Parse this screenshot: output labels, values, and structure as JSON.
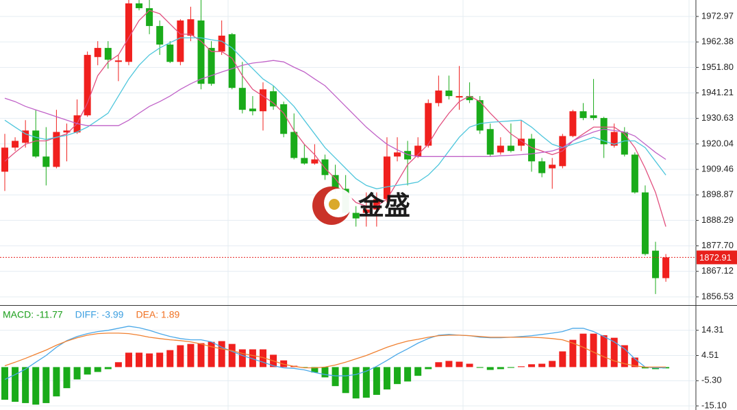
{
  "chart_data": [
    {
      "type": "candlestick",
      "up_color": "#f0201e",
      "down_color": "#1aab1a",
      "open": [
        1908.5,
        1918.5,
        1920.5,
        1925.6,
        1914.8,
        1910.5,
        1924.8,
        1924.8,
        1931.9,
        1956.1,
        1959.9,
        1954.1,
        1954.1,
        1978.4,
        1976.4,
        1969.0,
        1961.3,
        1954.1,
        1965.0,
        1971.3,
        1959.9,
        1958.4,
        1965.6,
        1943.3,
        1934.7,
        1933.6,
        1941.9,
        1936.5,
        1925.0,
        1914.2,
        1911.9,
        1913.6,
        1907.1,
        1901.4,
        1891.4,
        1891.4,
        1892.8,
        1897.1,
        1914.8,
        1917.1,
        1914.8,
        1919.3,
        1937.0,
        1942.2,
        1939.3,
        1939.9,
        1938.2,
        1926.2,
        1916.5,
        1919.3,
        1919.3,
        1922.2,
        1912.8,
        1909.9,
        1910.8,
        1923.3,
        1933.6,
        1931.9,
        1930.8,
        1919.3,
        1925.0,
        1915.6,
        1899.9,
        1875.7,
        1864.3
      ],
      "high": [
        1924.2,
        1922.8,
        1929.9,
        1934.2,
        1927.0,
        1934.2,
        1928.5,
        1938.5,
        1958.4,
        1962.7,
        1962.7,
        1957.0,
        1979.8,
        1979.8,
        1979.8,
        1971.3,
        1962.7,
        1971.8,
        1977.0,
        1979.8,
        1962.7,
        1971.3,
        1966.1,
        1954.1,
        1939.9,
        1945.6,
        1944.2,
        1937.6,
        1932.7,
        1919.9,
        1919.9,
        1915.6,
        1911.4,
        1907.1,
        1894.2,
        1899.9,
        1899.9,
        1922.8,
        1922.8,
        1921.3,
        1922.8,
        1938.5,
        1948.4,
        1948.4,
        1952.4,
        1945.6,
        1939.9,
        1928.5,
        1922.8,
        1928.5,
        1929.9,
        1924.2,
        1914.2,
        1914.2,
        1924.2,
        1934.2,
        1937.0,
        1947.0,
        1931.3,
        1928.5,
        1927.0,
        1916.5,
        1902.8,
        1879.4,
        1874.3
      ],
      "low": [
        1900.5,
        1917.1,
        1918.5,
        1914.2,
        1902.8,
        1909.9,
        1912.8,
        1924.2,
        1931.3,
        1952.7,
        1951.3,
        1946.1,
        1952.7,
        1975.5,
        1965.6,
        1957.0,
        1953.6,
        1952.7,
        1962.7,
        1942.7,
        1944.2,
        1957.0,
        1942.7,
        1932.7,
        1931.9,
        1925.6,
        1934.2,
        1922.8,
        1913.6,
        1911.4,
        1911.4,
        1905.1,
        1899.9,
        1889.9,
        1885.7,
        1885.7,
        1885.7,
        1895.7,
        1912.8,
        1902.8,
        1914.2,
        1918.5,
        1935.6,
        1938.5,
        1934.2,
        1937.0,
        1924.2,
        1914.8,
        1915.6,
        1916.5,
        1917.1,
        1908.5,
        1906.2,
        1901.4,
        1909.9,
        1922.8,
        1929.9,
        1929.9,
        1914.2,
        1918.5,
        1914.8,
        1899.4,
        1873.7,
        1857.7,
        1862.8
      ],
      "close": [
        1918.5,
        1921.3,
        1925.6,
        1914.8,
        1910.5,
        1925.0,
        1925.6,
        1931.9,
        1957.0,
        1959.9,
        1955.0,
        1954.7,
        1978.4,
        1976.4,
        1969.0,
        1961.3,
        1954.1,
        1971.3,
        1971.8,
        1945.0,
        1945.0,
        1965.0,
        1943.3,
        1934.2,
        1933.6,
        1942.7,
        1935.6,
        1924.2,
        1914.2,
        1911.9,
        1913.6,
        1907.1,
        1901.4,
        1891.4,
        1889.1,
        1892.8,
        1897.1,
        1914.8,
        1916.5,
        1913.6,
        1919.3,
        1937.0,
        1942.2,
        1939.9,
        1939.9,
        1938.2,
        1925.6,
        1915.6,
        1919.3,
        1917.1,
        1922.2,
        1912.8,
        1907.9,
        1911.4,
        1923.3,
        1933.6,
        1930.8,
        1930.8,
        1919.9,
        1925.0,
        1915.6,
        1899.9,
        1874.3,
        1864.3,
        1872.91
      ],
      "series": [
        {
          "color": "#e2507f",
          "values": [
            1912.8,
            1916.5,
            1919.9,
            1921.3,
            1921.3,
            1922.8,
            1924.2,
            1928.5,
            1937.0,
            1948.4,
            1954.1,
            1957.0,
            1964.1,
            1971.3,
            1975.5,
            1974.1,
            1969.8,
            1965.6,
            1965.6,
            1962.7,
            1958.4,
            1958.4,
            1955.6,
            1948.4,
            1942.7,
            1939.9,
            1937.0,
            1932.8,
            1925.6,
            1919.9,
            1915.6,
            1909.9,
            1905.6,
            1899.9,
            1895.7,
            1894.2,
            1894.2,
            1897.1,
            1904.2,
            1911.4,
            1915.6,
            1919.9,
            1927.0,
            1932.8,
            1937.6,
            1939.9,
            1937.6,
            1932.8,
            1928.5,
            1924.2,
            1921.3,
            1918.5,
            1917.1,
            1915.6,
            1917.1,
            1921.3,
            1924.2,
            1927.0,
            1927.0,
            1927.0,
            1924.2,
            1918.5,
            1909.9,
            1899.9,
            1885.7
          ]
        },
        {
          "color": "#4ec6dc",
          "values": [
            1929.9,
            1927.0,
            1924.2,
            1922.8,
            1921.9,
            1922.8,
            1923.6,
            1925.0,
            1927.0,
            1929.9,
            1932.8,
            1939.9,
            1947.0,
            1952.7,
            1957.0,
            1959.9,
            1962.1,
            1964.1,
            1964.1,
            1964.1,
            1963.3,
            1962.7,
            1959.9,
            1955.6,
            1951.3,
            1947.0,
            1944.2,
            1939.9,
            1935.6,
            1929.9,
            1924.2,
            1918.5,
            1914.2,
            1909.9,
            1905.6,
            1902.8,
            1901.4,
            1902.2,
            1902.8,
            1903.4,
            1904.2,
            1907.1,
            1911.4,
            1917.1,
            1922.8,
            1927.0,
            1928.5,
            1929.0,
            1929.3,
            1929.6,
            1929.9,
            1927.0,
            1923.3,
            1919.9,
            1918.5,
            1919.9,
            1921.3,
            1922.8,
            1921.3,
            1919.9,
            1921.3,
            1921.3,
            1918.5,
            1912.8,
            1907.1
          ]
        },
        {
          "color": "#c062c8",
          "values": [
            1939.0,
            1937.6,
            1935.6,
            1934.2,
            1932.8,
            1931.3,
            1929.9,
            1928.5,
            1927.6,
            1927.6,
            1927.6,
            1927.6,
            1929.9,
            1932.8,
            1935.6,
            1937.6,
            1939.9,
            1942.7,
            1945.0,
            1947.0,
            1948.4,
            1949.9,
            1951.3,
            1952.7,
            1953.6,
            1954.1,
            1954.7,
            1954.1,
            1951.9,
            1949.9,
            1947.0,
            1944.2,
            1939.9,
            1935.6,
            1931.3,
            1927.0,
            1923.3,
            1919.9,
            1917.6,
            1915.6,
            1914.8,
            1914.8,
            1914.8,
            1914.8,
            1914.8,
            1914.8,
            1914.8,
            1914.8,
            1915.1,
            1915.3,
            1915.6,
            1915.9,
            1916.5,
            1917.1,
            1918.5,
            1921.3,
            1923.3,
            1925.0,
            1926.2,
            1925.6,
            1925.0,
            1923.3,
            1919.9,
            1916.5,
            1913.6
          ]
        }
      ],
      "last_price": 1872.91,
      "last_price_color": "#e8201c",
      "watermark": "金盛",
      "ylim": [
        1853.1,
        1979.8
      ],
      "yticks": [
        1972.97,
        1962.38,
        {
          "value": 1951.8,
          "label": "1951.80"
        },
        1941.21,
        1930.63,
        1920.04,
        1909.46,
        1898.87,
        1888.29,
        {
          "value": 1877.7,
          "label": "1877.70"
        },
        1867.12,
        1856.53
      ],
      "grid": true
    },
    {
      "type": "macd",
      "up_color": "#f0201e",
      "down_color": "#1aab1a",
      "readouts": [
        {
          "text": "MACD: -11.77",
          "color": "#1a9e1a"
        },
        {
          "text": "DIFF: -3.99",
          "color": "#3a9ee0"
        },
        {
          "text": "DEA: 1.89",
          "color": "#f07020"
        }
      ],
      "histogram": [
        -12.7,
        -13.5,
        -14.0,
        -14.6,
        -14.0,
        -11.4,
        -8.2,
        -4.8,
        -2.9,
        -1.9,
        -0.8,
        1.9,
        5.6,
        5.6,
        5.3,
        5.6,
        6.6,
        8.5,
        9.0,
        9.3,
        9.8,
        10.1,
        9.0,
        6.9,
        6.9,
        6.9,
        4.8,
        2.6,
        0.5,
        -0.3,
        -2.1,
        -4.0,
        -7.4,
        -10.1,
        -12.2,
        -11.9,
        -10.8,
        -8.7,
        -6.6,
        -5.6,
        -3.4,
        -0.8,
        1.9,
        2.4,
        2.1,
        1.3,
        -0.3,
        -1.1,
        -0.8,
        -0.3,
        0.3,
        1.1,
        1.3,
        2.4,
        6.1,
        10.6,
        13.0,
        13.0,
        12.4,
        11.4,
        8.5,
        3.7,
        -0.5,
        -0.8,
        -0.5
      ],
      "series": [
        {
          "color": "#4aa8e8",
          "values": [
            -4.8,
            -2.9,
            -0.8,
            1.9,
            4.5,
            7.7,
            10.3,
            11.9,
            13.0,
            13.8,
            14.3,
            15.1,
            15.9,
            15.3,
            14.3,
            13.0,
            11.9,
            11.1,
            10.6,
            10.6,
            9.8,
            7.7,
            6.1,
            4.5,
            3.2,
            1.9,
            0.5,
            -0.3,
            -0.5,
            -1.1,
            -2.1,
            -2.9,
            -3.4,
            -3.4,
            -2.9,
            -1.6,
            0.3,
            2.6,
            5.0,
            7.1,
            9.3,
            11.1,
            12.4,
            12.7,
            12.4,
            12.2,
            11.6,
            11.4,
            11.4,
            11.6,
            11.9,
            12.2,
            12.7,
            13.2,
            13.8,
            15.1,
            15.1,
            13.8,
            11.9,
            9.8,
            7.1,
            3.2,
            0,
            -0.3,
            -0.3
          ]
        },
        {
          "color": "#f08030",
          "values": [
            0.5,
            1.9,
            3.4,
            5.0,
            6.6,
            8.5,
            10.1,
            11.4,
            12.4,
            13.0,
            13.2,
            13.2,
            13.0,
            12.4,
            11.6,
            11.1,
            10.6,
            10.3,
            9.8,
            9.0,
            7.9,
            7.1,
            6.4,
            5.3,
            4.5,
            3.7,
            2.4,
            1.1,
            0.3,
            -0.3,
            -0.3,
            0,
            0.8,
            1.9,
            3.2,
            4.5,
            6.1,
            7.7,
            9.0,
            10.1,
            10.8,
            11.6,
            12.2,
            12.4,
            12.4,
            12.2,
            11.9,
            11.6,
            11.6,
            11.6,
            11.6,
            11.6,
            11.4,
            11.1,
            10.6,
            9.3,
            7.7,
            5.8,
            4.0,
            2.4,
            1.3,
            0.5,
            0,
            0,
            0
          ]
        }
      ],
      "ylim": [
        -16.69,
        23.57
      ],
      "yticks": [
        14.31,
        4.51,
        {
          "value": -5.3,
          "label": "-5.30"
        },
        {
          "value": -15.1,
          "label": "-15.10"
        }
      ],
      "grid": true
    }
  ]
}
